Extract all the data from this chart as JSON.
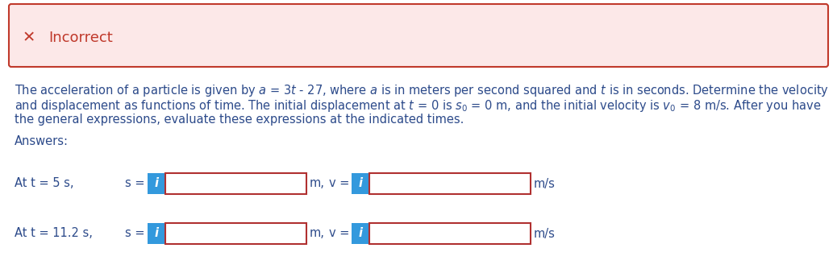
{
  "incorrect_label": "Incorrect",
  "incorrect_bg": "#fce8e8",
  "incorrect_border": "#c0392b",
  "incorrect_x_color": "#c0392b",
  "body_text_color": "#2c4a8a",
  "body_bg": "#ffffff",
  "answers_label": "Answers:",
  "row1_label": "At t = 5 s,",
  "row2_label": "At t = 11.2 s,",
  "s_eq": "s =",
  "v_eq": "v =",
  "m_unit": "m,",
  "ms_unit": "m/s",
  "input_box_border": "#b03030",
  "input_box_fill": "#ffffff",
  "i_button_bg": "#3399dd",
  "i_button_text": "i",
  "i_button_text_color": "#ffffff",
  "para_line1": "The acceleration of a particle is given by $a$ = 3$t$ - 27, where $a$ is in meters per second squared and $t$ is in seconds. Determine the velocity",
  "para_line2": "and displacement as functions of time. The initial displacement at $t$ = 0 is $s_0$ = 0 m, and the initial velocity is $v_0$ = 8 m/s. After you have",
  "para_line3": "the general expressions, evaluate these expressions at the indicated times."
}
